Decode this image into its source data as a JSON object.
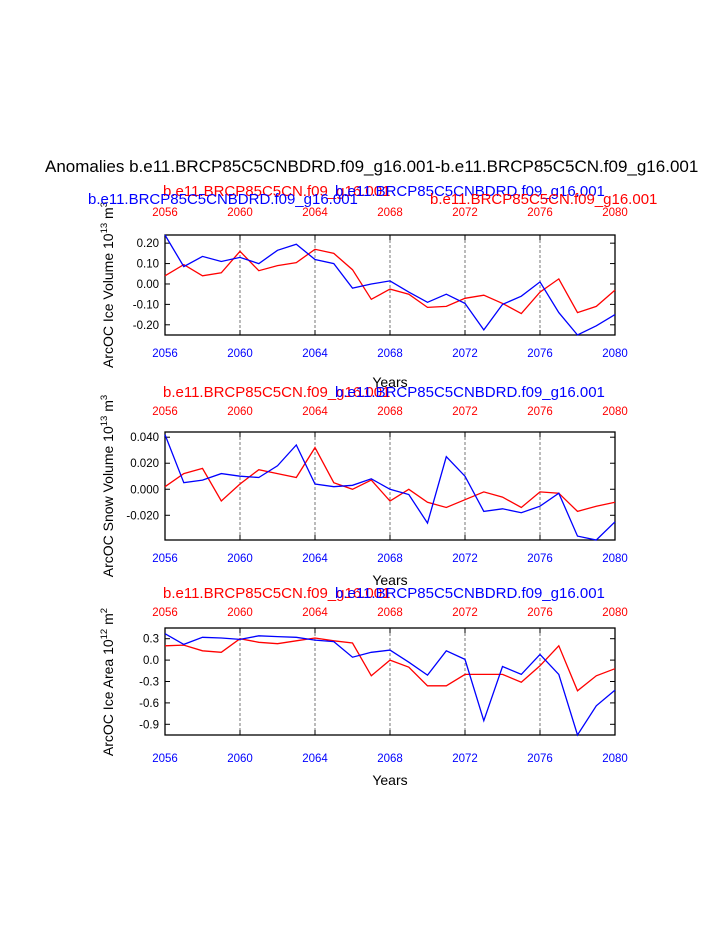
{
  "title": "Anomalies b.e11.BRCP85C5CNBDRD.f09_g16.001-b.e11.BRCP85C5CN.f09_g16.001",
  "colors": {
    "control": "#ff0000",
    "experiment": "#0000ff",
    "axis": "#000000",
    "refline": "#555555"
  },
  "chart_data": [
    {
      "type": "line",
      "ylabel": "ArcOC Ice Volume 10",
      "ylabel_exp": "13",
      "ylabel_unit": "m",
      "ylabel_unit_exp": "3",
      "xlabel": "Years",
      "run_labels": {
        "red": "b.e11.BRCP85C5CN.f09_g16.001",
        "blue": "b.e11.BRCP85C5CNBDRD.f09_g16.001"
      },
      "extra_run_labels": {
        "blue_left": "b.e11.BRCP85C5CNBDRD.f09_g16.001",
        "red_right": "b.e11.BRCP85C5CN.f09_g16.001"
      },
      "xlim": [
        2056,
        2080
      ],
      "ylim": [
        -0.25,
        0.24
      ],
      "xticks": [
        "2056",
        "2060",
        "2064",
        "2068",
        "2072",
        "2076",
        "2080"
      ],
      "yticks": [
        {
          "value": 0.2,
          "label": "0.20"
        },
        {
          "value": 0.1,
          "label": "0.10"
        },
        {
          "value": 0.0,
          "label": "0.00"
        },
        {
          "value": -0.1,
          "label": "-0.10"
        },
        {
          "value": -0.2,
          "label": "-0.20"
        }
      ],
      "refline_years": [
        2060,
        2064,
        2068,
        2072,
        2076
      ],
      "x": [
        2056,
        2057,
        2058,
        2059,
        2060,
        2061,
        2062,
        2063,
        2064,
        2065,
        2066,
        2067,
        2068,
        2069,
        2070,
        2071,
        2072,
        2073,
        2074,
        2075,
        2076,
        2077,
        2078,
        2079,
        2080
      ],
      "series": [
        {
          "name": "b.e11.BRCP85C5CN.f09_g16.001",
          "color": "red",
          "values": [
            0.04,
            0.095,
            0.04,
            0.055,
            0.16,
            0.065,
            0.09,
            0.105,
            0.17,
            0.15,
            0.07,
            -0.075,
            -0.025,
            -0.05,
            -0.115,
            -0.11,
            -0.07,
            -0.055,
            -0.095,
            -0.145,
            -0.04,
            0.025,
            -0.14,
            -0.11,
            -0.03
          ]
        },
        {
          "name": "b.e11.BRCP85C5CNBDRD.f09_g16.001",
          "color": "blue",
          "values": [
            0.24,
            0.085,
            0.135,
            0.11,
            0.13,
            0.1,
            0.165,
            0.195,
            0.12,
            0.1,
            -0.02,
            0.0,
            0.015,
            -0.04,
            -0.09,
            -0.05,
            -0.095,
            -0.225,
            -0.1,
            -0.06,
            0.01,
            -0.14,
            -0.25,
            -0.205,
            -0.15
          ]
        }
      ]
    },
    {
      "type": "line",
      "ylabel": "ArcOC Snow Volume 10",
      "ylabel_exp": "13",
      "ylabel_unit": "m",
      "ylabel_unit_exp": "3",
      "xlabel": "Years",
      "run_labels": {
        "red": "b.e11.BRCP85C5CN.f09_g16.001",
        "blue": "b.e11.BRCP85C5CNBDRD.f09_g16.001"
      },
      "xlim": [
        2056,
        2080
      ],
      "ylim": [
        -0.039,
        0.044
      ],
      "xticks": [
        "2056",
        "2060",
        "2064",
        "2068",
        "2072",
        "2076",
        "2080"
      ],
      "yticks": [
        {
          "value": 0.04,
          "label": "0.040"
        },
        {
          "value": 0.02,
          "label": "0.020"
        },
        {
          "value": 0.0,
          "label": "0.000"
        },
        {
          "value": -0.02,
          "label": "-0.020"
        }
      ],
      "refline_years": [
        2060,
        2064,
        2068,
        2072,
        2076
      ],
      "x": [
        2056,
        2057,
        2058,
        2059,
        2060,
        2061,
        2062,
        2063,
        2064,
        2065,
        2066,
        2067,
        2068,
        2069,
        2070,
        2071,
        2072,
        2073,
        2074,
        2075,
        2076,
        2077,
        2078,
        2079,
        2080
      ],
      "series": [
        {
          "name": "b.e11.BRCP85C5CN.f09_g16.001",
          "color": "red",
          "values": [
            0.002,
            0.012,
            0.016,
            -0.009,
            0.004,
            0.015,
            0.012,
            0.009,
            0.032,
            0.005,
            0.0,
            0.007,
            -0.009,
            0.0,
            -0.01,
            -0.014,
            -0.008,
            -0.002,
            -0.006,
            -0.014,
            -0.002,
            -0.003,
            -0.017,
            -0.013,
            -0.01
          ]
        },
        {
          "name": "b.e11.BRCP85C5CNBDRD.f09_g16.001",
          "color": "blue",
          "values": [
            0.042,
            0.005,
            0.007,
            0.012,
            0.01,
            0.009,
            0.018,
            0.034,
            0.004,
            0.002,
            0.003,
            0.008,
            0.0,
            -0.004,
            -0.026,
            0.025,
            0.01,
            -0.017,
            -0.015,
            -0.018,
            -0.013,
            -0.003,
            -0.036,
            -0.039,
            -0.025
          ]
        }
      ]
    },
    {
      "type": "line",
      "ylabel": "ArcOC Ice Area 10",
      "ylabel_exp": "12",
      "ylabel_unit": "m",
      "ylabel_unit_exp": "2",
      "xlabel": "Years",
      "run_labels": {
        "red": "b.e11.BRCP85C5CN.f09_g16.001",
        "blue": "b.e11.BRCP85C5CNBDRD.f09_g16.001"
      },
      "xlim": [
        2056,
        2080
      ],
      "ylim": [
        -1.05,
        0.45
      ],
      "xticks": [
        "2056",
        "2060",
        "2064",
        "2068",
        "2072",
        "2076",
        "2080"
      ],
      "yticks": [
        {
          "value": 0.3,
          "label": "0.3"
        },
        {
          "value": 0.0,
          "label": "0.0"
        },
        {
          "value": -0.3,
          "label": "-0.3"
        },
        {
          "value": -0.6,
          "label": "-0.6"
        },
        {
          "value": -0.9,
          "label": "-0.9"
        }
      ],
      "refline_years": [
        2060,
        2064,
        2068,
        2072,
        2076
      ],
      "x": [
        2056,
        2057,
        2058,
        2059,
        2060,
        2061,
        2062,
        2063,
        2064,
        2065,
        2066,
        2067,
        2068,
        2069,
        2070,
        2071,
        2072,
        2073,
        2074,
        2075,
        2076,
        2077,
        2078,
        2079,
        2080
      ],
      "series": [
        {
          "name": "b.e11.BRCP85C5CN.f09_g16.001",
          "color": "red",
          "values": [
            0.2,
            0.21,
            0.13,
            0.11,
            0.3,
            0.25,
            0.23,
            0.27,
            0.31,
            0.27,
            0.24,
            -0.22,
            0.0,
            -0.1,
            -0.36,
            -0.36,
            -0.2,
            -0.2,
            -0.2,
            -0.31,
            -0.08,
            0.2,
            -0.43,
            -0.22,
            -0.12
          ]
        },
        {
          "name": "b.e11.BRCP85C5CNBDRD.f09_g16.001",
          "color": "blue",
          "values": [
            0.37,
            0.22,
            0.32,
            0.31,
            0.29,
            0.34,
            0.33,
            0.32,
            0.28,
            0.26,
            0.04,
            0.11,
            0.14,
            -0.03,
            -0.21,
            0.13,
            0.01,
            -0.85,
            -0.09,
            -0.2,
            0.08,
            -0.2,
            -1.05,
            -0.64,
            -0.42
          ]
        }
      ]
    }
  ]
}
